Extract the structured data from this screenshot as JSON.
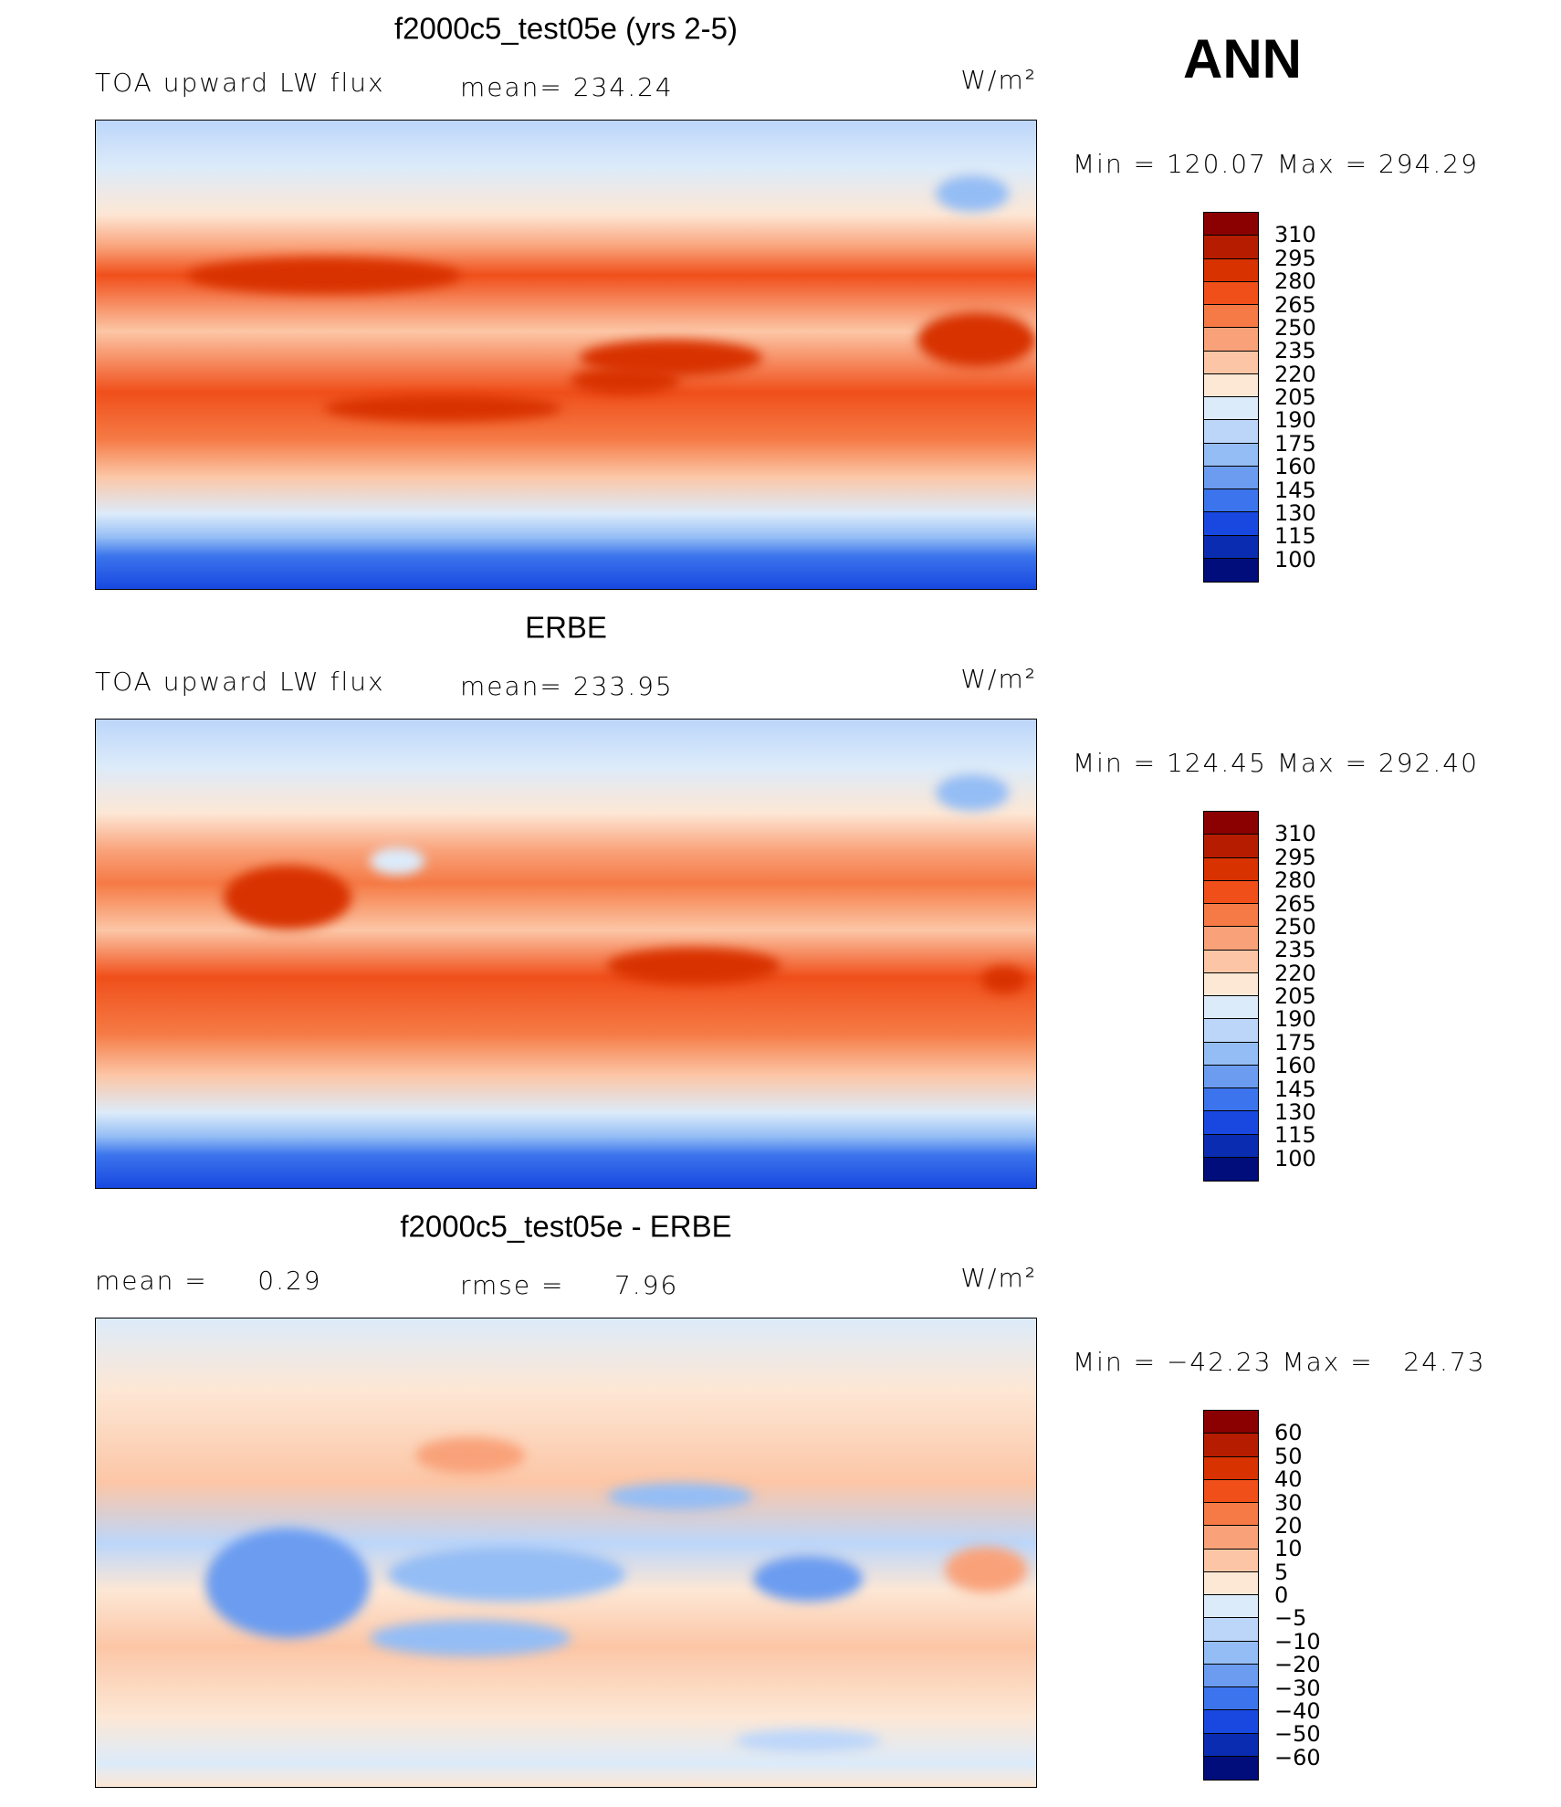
{
  "header": {
    "season": "ANN"
  },
  "panels": [
    {
      "title": "f2000c5_test05e (yrs 2-5)",
      "left": "TOA upward LW flux",
      "middle": "mean= 234.24",
      "units": "W/m²",
      "range": "Min = 120.07 Max = 294.29",
      "colorbar": {
        "labels": [
          "310",
          "295",
          "280",
          "265",
          "250",
          "235",
          "220",
          "205",
          "190",
          "175",
          "160",
          "145",
          "130",
          "115",
          "100"
        ],
        "colors": [
          "#8b0000",
          "#b51c00",
          "#d83200",
          "#f04f1a",
          "#f57a45",
          "#f9a27a",
          "#fcc6a6",
          "#fde7d5",
          "#dcebfa",
          "#bcd6fa",
          "#94bdf5",
          "#6b9cf0",
          "#3b74ec",
          "#1848e0",
          "#0a2cb0",
          "#000d7a"
        ]
      }
    },
    {
      "title": "ERBE",
      "left": "TOA upward LW flux",
      "middle": "mean= 233.95",
      "units": "W/m²",
      "range": "Min = 124.45 Max = 292.40",
      "colorbar": {
        "labels": [
          "310",
          "295",
          "280",
          "265",
          "250",
          "235",
          "220",
          "205",
          "190",
          "175",
          "160",
          "145",
          "130",
          "115",
          "100"
        ],
        "colors": [
          "#8b0000",
          "#b51c00",
          "#d83200",
          "#f04f1a",
          "#f57a45",
          "#f9a27a",
          "#fcc6a6",
          "#fde7d5",
          "#dcebfa",
          "#bcd6fa",
          "#94bdf5",
          "#6b9cf0",
          "#3b74ec",
          "#1848e0",
          "#0a2cb0",
          "#000d7a"
        ]
      }
    },
    {
      "title": "f2000c5_test05e - ERBE",
      "left": "mean =     0.29",
      "middle": "rmse =     7.96",
      "units": "W/m²",
      "range": "Min = −42.23 Max =   24.73",
      "colorbar": {
        "labels": [
          "60",
          "50",
          "40",
          "30",
          "20",
          "10",
          "5",
          "0",
          "−5",
          "−10",
          "−20",
          "−30",
          "−40",
          "−50",
          "−60"
        ],
        "colors": [
          "#8b0000",
          "#b51c00",
          "#d83200",
          "#f04f1a",
          "#f57a45",
          "#f9a27a",
          "#fcc6a6",
          "#fde7d5",
          "#dcebfa",
          "#bcd6fa",
          "#94bdf5",
          "#6b9cf0",
          "#3b74ec",
          "#1848e0",
          "#0a2cb0",
          "#000d7a"
        ]
      }
    }
  ]
}
